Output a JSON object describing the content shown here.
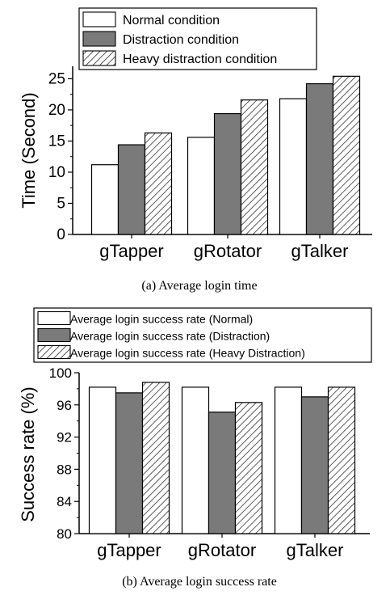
{
  "chart_data": [
    {
      "type": "bar",
      "caption": "(a) Average login time",
      "categories": [
        "gTapper",
        "gRotator",
        "gTalker"
      ],
      "series": [
        {
          "name": "Normal condition",
          "values": [
            11.2,
            15.6,
            21.8
          ],
          "color": "#ffffff",
          "pattern": "none"
        },
        {
          "name": "Distraction condition",
          "values": [
            14.4,
            19.4,
            24.2
          ],
          "color": "#7a7a7a",
          "pattern": "none"
        },
        {
          "name": "Heavy distraction condition",
          "values": [
            16.3,
            21.6,
            25.4
          ],
          "color": "#ffffff",
          "pattern": "hatch"
        }
      ],
      "ylabel": "Time (Second)",
      "xlabel": "",
      "ylim": [
        0,
        27
      ],
      "yticks": [
        "0",
        "5",
        "10",
        "15",
        "20",
        "25"
      ],
      "ytick_values": [
        0,
        5,
        10,
        15,
        20,
        25
      ],
      "grid": false,
      "legend_position": "top"
    },
    {
      "type": "bar",
      "caption": "(b) Average login success rate",
      "categories": [
        "gTapper",
        "gRotator",
        "gTalker"
      ],
      "series": [
        {
          "name": "Average login success rate (Normal)",
          "values": [
            98.2,
            98.2,
            98.2
          ],
          "color": "#ffffff",
          "pattern": "none"
        },
        {
          "name": "Average login success rate (Distraction)",
          "values": [
            97.5,
            95.1,
            97.0
          ],
          "color": "#7a7a7a",
          "pattern": "none"
        },
        {
          "name": "Average login success rate (Heavy Distraction)",
          "values": [
            98.8,
            96.3,
            98.2
          ],
          "color": "#ffffff",
          "pattern": "hatch"
        }
      ],
      "ylabel": "Success rate (%)",
      "xlabel": "",
      "ylim": [
        80,
        100
      ],
      "yticks": [
        "80",
        "84",
        "88",
        "92",
        "96",
        "100"
      ],
      "ytick_values": [
        80,
        84,
        88,
        92,
        96,
        100
      ],
      "grid": false,
      "legend_position": "top"
    }
  ]
}
